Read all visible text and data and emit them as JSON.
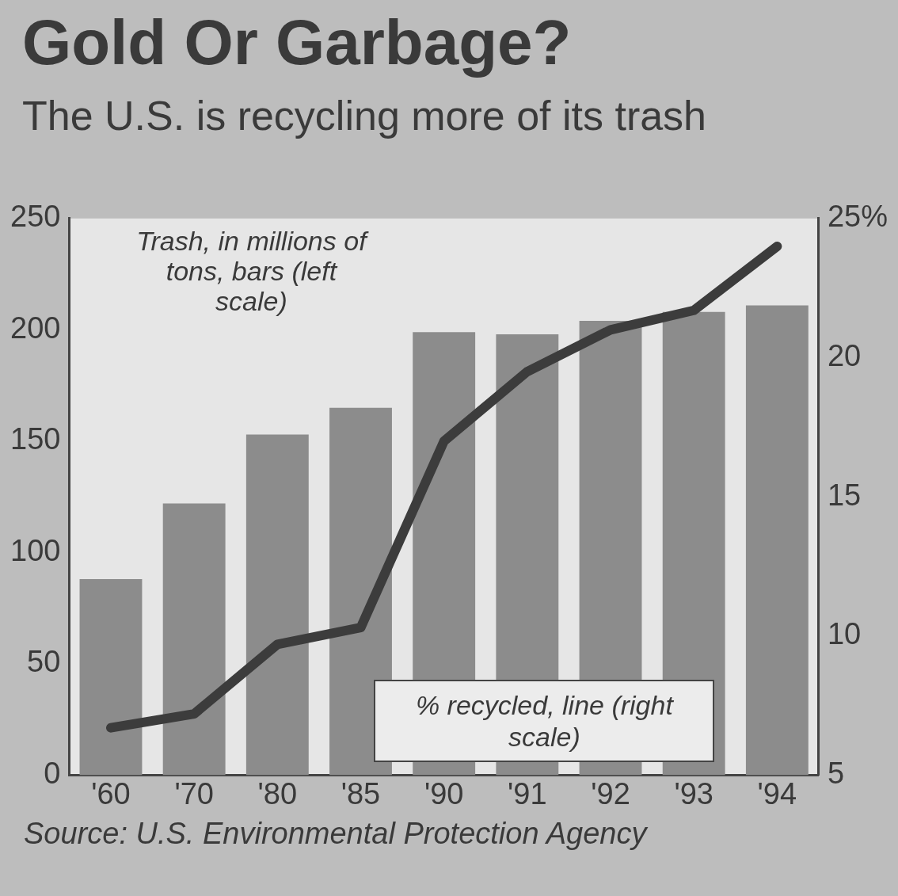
{
  "chart_data": {
    "type": "bar",
    "title": "Gold Or Garbage?",
    "subtitle": "The U.S. is recycling more of its trash",
    "categories": [
      "'60",
      "'70",
      "'80",
      "'85",
      "'90",
      "'91",
      "'92",
      "'93",
      "'94"
    ],
    "series": [
      {
        "color": "#8c8c8c",
        "values": [
          88,
          122,
          153,
          165,
          199,
          198,
          204,
          208,
          211
        ]
      },
      {
        "type": "line",
        "axis": "y2",
        "color": "#3c3c3c",
        "values": [
          6.7,
          7.2,
          9.7,
          10.3,
          17.0,
          19.5,
          21.0,
          21.7,
          24.0
        ]
      }
    ],
    "ylim": [
      0,
      250
    ],
    "yticks": [
      0,
      50,
      100,
      150,
      200,
      250
    ],
    "y2lim": [
      5,
      25
    ],
    "y2ticks": [
      5,
      10,
      15,
      20,
      {
        "value": 25,
        "label": "25%"
      }
    ],
    "grid": false,
    "legend": false,
    "marker": "none",
    "annotations": [
      "Trash, in millions of tons, bars (left scale)",
      "% recycled, line (right scale)",
      "Source: U.S. Environmental Protection Agency"
    ]
  }
}
